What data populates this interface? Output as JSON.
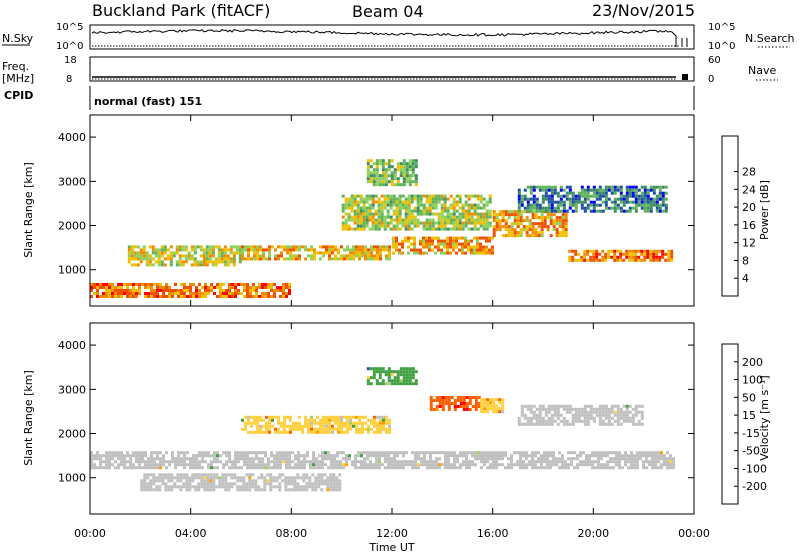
{
  "header": {
    "station": "Buckland Park (fitACF)",
    "beam": "Beam 04",
    "date": "23/Nov/2015"
  },
  "top_panels": {
    "nsky_label": "N.Sky",
    "nsky_ticks": [
      "10^5",
      "10^0"
    ],
    "nsearch_label": "N.Search",
    "nsearch_ticks": [
      "10^5",
      "10^0"
    ],
    "freq_label": "Freq.",
    "freq_unit": "[MHz]",
    "freq_ticks": [
      "18",
      "8"
    ],
    "nave_label": "Nave",
    "nave_ticks": [
      "60",
      "0"
    ],
    "cpid_label": "CPID",
    "cpid_value": "normal (fast) 151"
  },
  "colors": {
    "power_scale": [
      "#0000ff",
      "#1f4fa8",
      "#3c8c64",
      "#5fb45a",
      "#8fd05a",
      "#f0c000",
      "#f08c00",
      "#f05000",
      "#ff0000"
    ],
    "velocity_scale": [
      "#ff0000",
      "#ff6000",
      "#ffa000",
      "#ffd040",
      "#c0c0c0",
      "#a0d060",
      "#40a040",
      "#3050b0",
      "#0000ff"
    ],
    "ground_scatter": "#c0c0c0"
  },
  "chart_data": [
    {
      "type": "heatmap",
      "title": "",
      "ylabel": "Slant Range [km]",
      "xlabel": "",
      "x_ticks": [
        "00:00",
        "04:00",
        "08:00",
        "12:00",
        "16:00",
        "20:00",
        "00:00"
      ],
      "xlim": [
        0,
        24
      ],
      "ylim": [
        180,
        4500
      ],
      "y_ticks": [
        1000,
        2000,
        3000,
        4000
      ],
      "colorbar_label": "Power [dB]",
      "colorbar_ticks": [
        4,
        8,
        12,
        16,
        20,
        24,
        28
      ],
      "bands": [
        {
          "x": [
            0,
            8
          ],
          "y": [
            350,
            700
          ],
          "value": 26
        },
        {
          "x": [
            1.5,
            6
          ],
          "y": [
            1100,
            1550
          ],
          "value": 20
        },
        {
          "x": [
            6,
            12
          ],
          "y": [
            1200,
            1550
          ],
          "value": 22
        },
        {
          "x": [
            12,
            16
          ],
          "y": [
            1350,
            1750
          ],
          "value": 24
        },
        {
          "x": [
            16,
            19
          ],
          "y": [
            1750,
            2350
          ],
          "value": 24
        },
        {
          "x": [
            19,
            23.2
          ],
          "y": [
            1150,
            1450
          ],
          "value": 26
        },
        {
          "x": [
            10,
            16
          ],
          "y": [
            1900,
            2700
          ],
          "value": 18
        },
        {
          "x": [
            11,
            13
          ],
          "y": [
            2900,
            3500
          ],
          "value": 16
        },
        {
          "x": [
            17,
            23
          ],
          "y": [
            2300,
            2900
          ],
          "value": 10
        }
      ]
    },
    {
      "type": "heatmap",
      "title": "",
      "ylabel": "Slant Range [km]",
      "xlabel": "Time UT",
      "x_ticks": [
        "00:00",
        "04:00",
        "08:00",
        "12:00",
        "16:00",
        "20:00",
        "00:00"
      ],
      "xlim": [
        0,
        24
      ],
      "ylim": [
        180,
        4500
      ],
      "y_ticks": [
        1000,
        2000,
        3000,
        4000
      ],
      "colorbar_label": "Velocity [m s⁻¹]",
      "colorbar_ticks": [
        "200",
        "100",
        "50",
        "15",
        "-15",
        "-50",
        "-100",
        "-200"
      ],
      "bands": [
        {
          "x": [
            0,
            23.2
          ],
          "y": [
            1200,
            1600
          ],
          "value": 0
        },
        {
          "x": [
            2,
            10
          ],
          "y": [
            700,
            1100
          ],
          "value": 0
        },
        {
          "x": [
            13.5,
            15.5
          ],
          "y": [
            2500,
            2850
          ],
          "value": -180
        },
        {
          "x": [
            15.5,
            16.5
          ],
          "y": [
            2450,
            2800
          ],
          "value": -40
        },
        {
          "x": [
            6,
            12
          ],
          "y": [
            2000,
            2400
          ],
          "value": -30
        },
        {
          "x": [
            11,
            13
          ],
          "y": [
            3100,
            3500
          ],
          "value": 60
        },
        {
          "x": [
            17,
            22
          ],
          "y": [
            2200,
            2650
          ],
          "value": 0
        }
      ]
    }
  ]
}
